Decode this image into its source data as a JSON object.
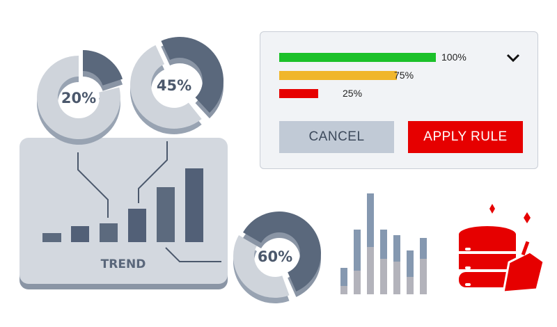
{
  "trend_panel": {
    "label": "TREND"
  },
  "donuts": [
    {
      "label": "20%",
      "value": 20
    },
    {
      "label": "45%",
      "value": 45
    },
    {
      "label": "60%",
      "value": 60
    }
  ],
  "rule_dialog": {
    "levels": [
      {
        "label": "100%",
        "value": 100,
        "color": "#1cc12a"
      },
      {
        "label": "75%",
        "value": 75,
        "color": "#f0b62b"
      },
      {
        "label": "25%",
        "value": 25,
        "color": "#e60000"
      }
    ],
    "cancel_label": "CANCEL",
    "apply_label": "APPLY RULE"
  },
  "colors": {
    "accent": "#e60000",
    "slate": "#526077",
    "panel": "#d3d8df"
  },
  "icons": [
    "chevron-down-icon",
    "database-cleanup-icon",
    "sparkle-icon"
  ]
}
